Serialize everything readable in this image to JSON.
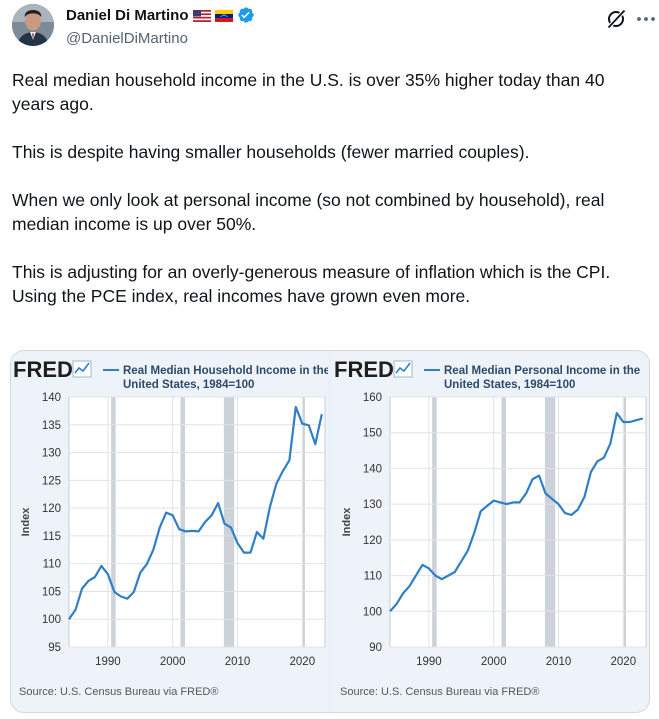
{
  "author": {
    "name": "Daniel Di Martino",
    "handle": "@DanielDiMartino",
    "flags": [
      "us-flag",
      "venezuela-flag"
    ],
    "verified": true
  },
  "tweet": {
    "paragraphs": [
      "Real median household income in the U.S. is over 35% higher today than 40 years ago.",
      "This is despite having smaller households (fewer married couples).",
      "When we only look at personal income (so not combined by household), real median income is up over 50%.",
      "This is adjusting for an overly-generous measure of inflation which is the CPI. Using the PCE index, real incomes have grown even more."
    ]
  },
  "chart_data": [
    {
      "type": "line",
      "logo": "FRED",
      "title_line1": "Real Median Household Income in the",
      "title_line2": "United States, 1984=100",
      "ylabel": "Index",
      "ylim": [
        95,
        140
      ],
      "yticks": [
        95,
        100,
        105,
        110,
        115,
        120,
        125,
        130,
        135,
        140
      ],
      "xlim": [
        1984,
        2023.5
      ],
      "xticks": [
        1990,
        2000,
        2010,
        2020
      ],
      "recessions": [
        [
          1990.5,
          1991.2
        ],
        [
          2001.2,
          2001.9
        ],
        [
          2007.9,
          2009.5
        ],
        [
          2020.1,
          2020.4
        ]
      ],
      "source": "Source: U.S. Census Bureau via FRED®",
      "color": "#2f7fc8",
      "series": [
        {
          "x": [
            1984,
            1985,
            1986,
            1987,
            1988,
            1989,
            1990,
            1991,
            1992,
            1993,
            1994,
            1995,
            1996,
            1997,
            1998,
            1999,
            2000,
            2001,
            2002,
            2003,
            2004,
            2005,
            2006,
            2007,
            2008,
            2009,
            2010,
            2011,
            2012,
            2013,
            2014,
            2015,
            2016,
            2017,
            2018,
            2019,
            2020,
            2021,
            2022,
            2023
          ],
          "y": [
            100,
            101.7,
            105.5,
            106.9,
            107.6,
            109.6,
            108.1,
            104.9,
            104.1,
            103.7,
            104.9,
            108.4,
            109.9,
            112.5,
            116.5,
            119.2,
            118.7,
            116.2,
            115.8,
            115.9,
            115.8,
            117.5,
            118.7,
            120.9,
            117.2,
            116.5,
            113.7,
            112,
            112,
            115.7,
            114.5,
            120.2,
            124.4,
            126.7,
            128.6,
            138.2,
            135.2,
            134.9,
            131.5,
            136.9
          ]
        }
      ]
    },
    {
      "type": "line",
      "logo": "FRED",
      "title_line1": "Real Median Personal Income in the",
      "title_line2": "United States, 1984=100",
      "ylabel": "Index",
      "ylim": [
        90,
        160
      ],
      "yticks": [
        90,
        100,
        110,
        120,
        130,
        140,
        150,
        160
      ],
      "xlim": [
        1984,
        2023.5
      ],
      "xticks": [
        1990,
        2000,
        2010,
        2020
      ],
      "recessions": [
        [
          1990.5,
          1991.2
        ],
        [
          2001.2,
          2001.9
        ],
        [
          2007.9,
          2009.5
        ],
        [
          2020.1,
          2020.4
        ]
      ],
      "source": "Source: U.S. Census Bureau via FRED®",
      "color": "#2f7fc8",
      "series": [
        {
          "x": [
            1984,
            1985,
            1986,
            1987,
            1988,
            1989,
            1990,
            1991,
            1992,
            1993,
            1994,
            1995,
            1996,
            1997,
            1998,
            1999,
            2000,
            2001,
            2002,
            2003,
            2004,
            2005,
            2006,
            2007,
            2008,
            2009,
            2010,
            2011,
            2012,
            2013,
            2014,
            2015,
            2016,
            2017,
            2018,
            2019,
            2020,
            2021,
            2022,
            2023
          ],
          "y": [
            100,
            102,
            105,
            107,
            110,
            113,
            112,
            110,
            109,
            110,
            111,
            114,
            117,
            122,
            128,
            129.5,
            131,
            130.5,
            130,
            130.5,
            130.5,
            133,
            137,
            138,
            133,
            131.5,
            130,
            127.5,
            127,
            128.5,
            132,
            139,
            142,
            143,
            147,
            155.5,
            153,
            153,
            153.5,
            154
          ]
        }
      ]
    }
  ]
}
